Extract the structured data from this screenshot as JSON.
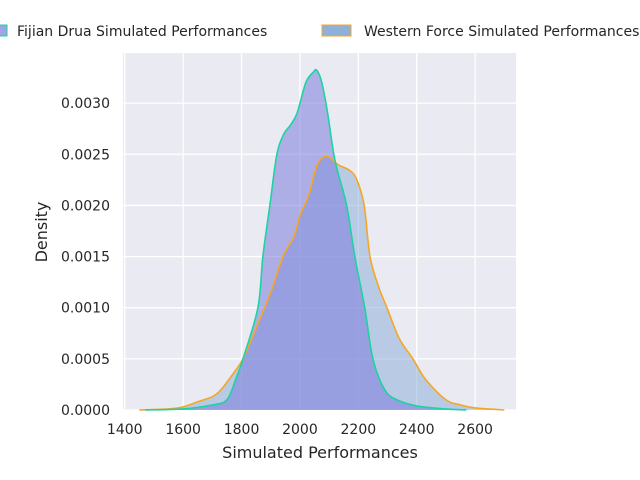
{
  "chart_data": {
    "type": "area",
    "title": "",
    "xlabel": "Simulated Performances",
    "ylabel": "Density",
    "xlim": [
      1394,
      2740
    ],
    "ylim": [
      0,
      0.00349
    ],
    "grid": true,
    "legend_placement": "top-center",
    "xticks": [
      1400,
      1600,
      1800,
      2000,
      2200,
      2400,
      2600
    ],
    "xtick_labels": [
      "1400",
      "1600",
      "1800",
      "2000",
      "2200",
      "2400",
      "2600"
    ],
    "yticks": [
      0,
      0.0005,
      0.001,
      0.0015,
      0.002,
      0.0025,
      0.003
    ],
    "ytick_labels": [
      "0.0000",
      "0.0005",
      "0.0010",
      "0.0015",
      "0.0020",
      "0.0025",
      "0.0030"
    ],
    "series": [
      {
        "name": "Fijian Drua Simulated Performances",
        "fill": "#7b7bdc",
        "edge": "#1cd3a2",
        "x": [
          1470,
          1600,
          1700,
          1750,
          1780,
          1805,
          1856,
          1873,
          1897,
          1921,
          1945,
          1966,
          1990,
          2020,
          2045,
          2058,
          2075,
          2095,
          2120,
          2160,
          2188,
          2222,
          2250,
          2290,
          2332,
          2400,
          2500,
          2570
        ],
        "y": [
          0,
          1e-05,
          5e-05,
          0.0001,
          0.0003,
          0.0005,
          0.001,
          0.0015,
          0.002,
          0.0025,
          0.0027,
          0.00278,
          0.0029,
          0.0032,
          0.0033,
          0.00332,
          0.0032,
          0.0029,
          0.00244,
          0.002,
          0.0015,
          0.001,
          0.0005,
          0.0002,
          0.0001,
          4e-05,
          1e-05,
          0
        ]
      },
      {
        "name": "Western Force Simulated Performances",
        "fill": "#8fb0d8",
        "edge": "#f5a623",
        "x": [
          1450,
          1550,
          1600,
          1650,
          1700,
          1730,
          1770,
          1805,
          1850,
          1900,
          1942,
          1980,
          2000,
          2030,
          2060,
          2092,
          2130,
          2171,
          2195,
          2220,
          2240,
          2270,
          2298,
          2340,
          2387,
          2430,
          2500,
          2550,
          2600,
          2700
        ],
        "y": [
          0,
          1e-05,
          3e-05,
          8e-05,
          0.00013,
          0.0002,
          0.00035,
          0.0005,
          0.0008,
          0.00115,
          0.0015,
          0.0017,
          0.0019,
          0.0021,
          0.0024,
          0.00248,
          0.0024,
          0.00234,
          0.00225,
          0.002,
          0.0015,
          0.0012,
          0.001,
          0.0007,
          0.0005,
          0.0003,
          0.0001,
          5e-05,
          2e-05,
          0
        ]
      }
    ]
  }
}
